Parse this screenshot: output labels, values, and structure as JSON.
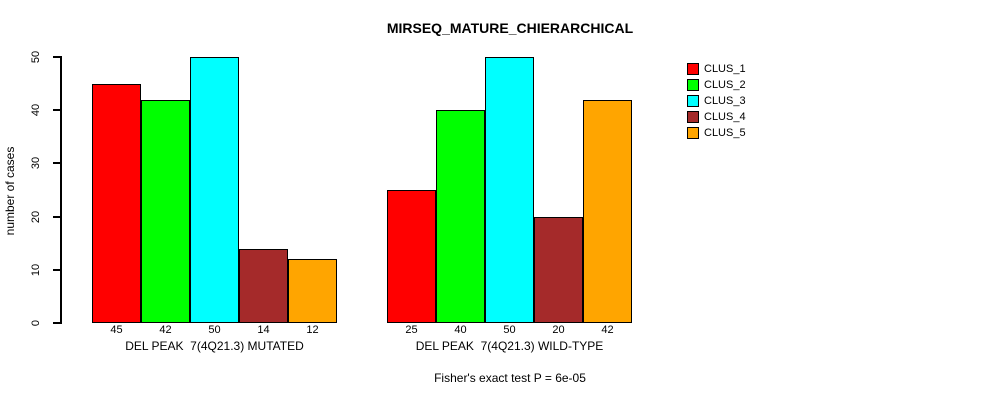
{
  "chart_data": {
    "type": "bar",
    "title": "MIRSEQ_MATURE_CHIERARCHICAL",
    "ylabel": "number of cases",
    "xlabel": "",
    "ylim": [
      0,
      50
    ],
    "yticks": [
      0,
      10,
      20,
      30,
      40,
      50
    ],
    "grid": false,
    "legend_position": "right",
    "categories": [
      "DEL PEAK  7(4Q21.3) MUTATED",
      "DEL PEAK  7(4Q21.3) WILD-TYPE"
    ],
    "series": [
      {
        "name": "CLUS_1",
        "color": "#FF0000",
        "values": [
          45,
          25
        ]
      },
      {
        "name": "CLUS_2",
        "color": "#00FF00",
        "values": [
          42,
          40
        ]
      },
      {
        "name": "CLUS_3",
        "color": "#00FFFF",
        "values": [
          50,
          50
        ]
      },
      {
        "name": "CLUS_4",
        "color": "#A52A2A",
        "values": [
          14,
          20
        ]
      },
      {
        "name": "CLUS_5",
        "color": "#FFA500",
        "values": [
          12,
          42
        ]
      }
    ],
    "bar_value_labels": [
      [
        45,
        42,
        50,
        14,
        12
      ],
      [
        25,
        40,
        50,
        20,
        42
      ]
    ],
    "annotation": "Fisher's exact test P = 6e-05"
  }
}
